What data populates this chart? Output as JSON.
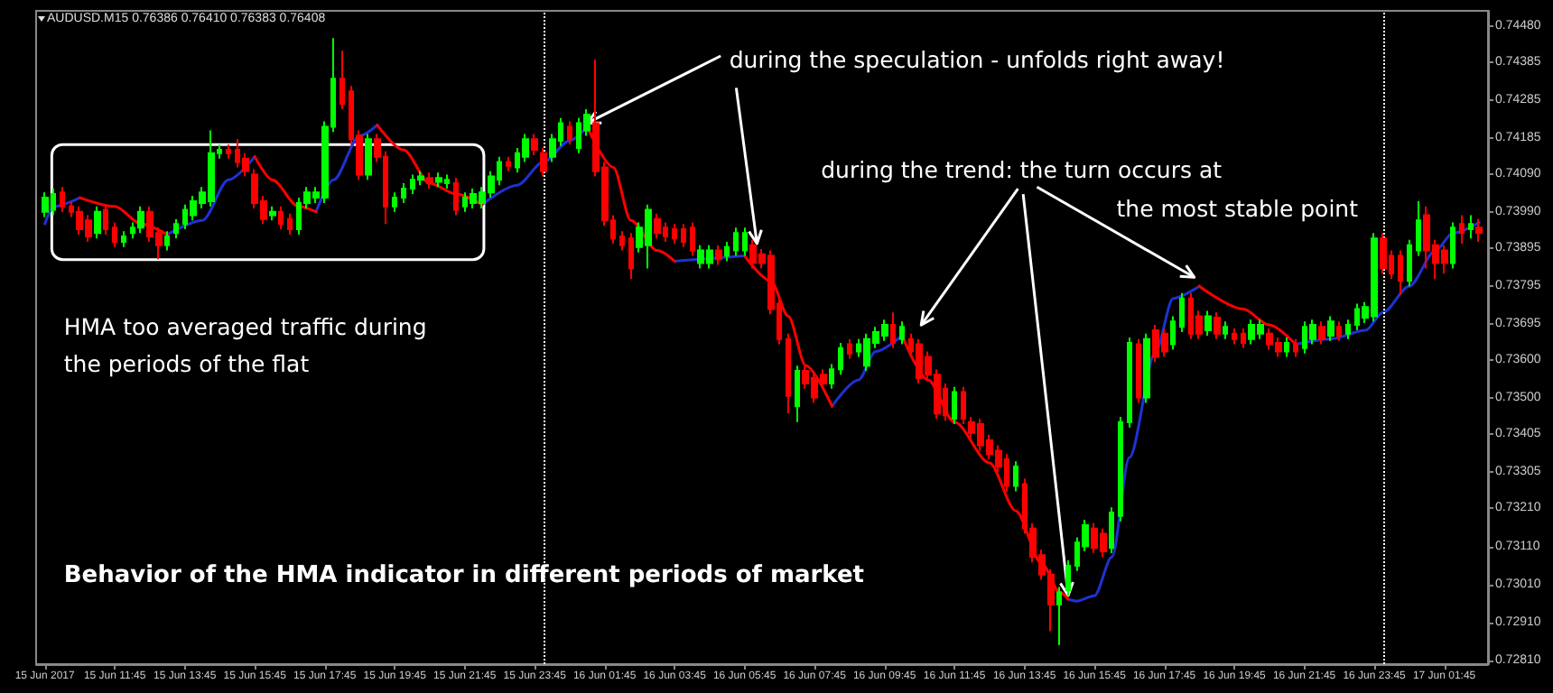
{
  "chart_data": {
    "type": "candlestick",
    "title": "AUDUSD.M15 0.76386 0.76410 0.76383 0.76408",
    "x": [
      "2017-06-15T09:45",
      "2017-06-15T10:00",
      "2017-06-15T10:15",
      "2017-06-15T10:30",
      "2017-06-15T10:45",
      "2017-06-15T11:00",
      "2017-06-15T11:15",
      "2017-06-15T11:30",
      "2017-06-15T11:45",
      "2017-06-15T12:00",
      "2017-06-15T12:15",
      "2017-06-15T12:30",
      "2017-06-15T12:45",
      "2017-06-15T13:00",
      "2017-06-15T13:15",
      "2017-06-15T13:30",
      "2017-06-15T13:45",
      "2017-06-15T14:00",
      "2017-06-15T14:15",
      "2017-06-15T14:30",
      "2017-06-15T14:45",
      "2017-06-15T15:00",
      "2017-06-15T15:15",
      "2017-06-15T15:30",
      "2017-06-15T15:45",
      "2017-06-15T16:00",
      "2017-06-15T16:15",
      "2017-06-15T16:30",
      "2017-06-15T16:45",
      "2017-06-15T17:00",
      "2017-06-15T17:15",
      "2017-06-15T17:30",
      "2017-06-15T17:45",
      "2017-06-15T18:00",
      "2017-06-15T18:15",
      "2017-06-15T18:30",
      "2017-06-15T18:45",
      "2017-06-15T19:00",
      "2017-06-15T19:15",
      "2017-06-15T19:30",
      "2017-06-15T19:45",
      "2017-06-15T20:00",
      "2017-06-15T20:15",
      "2017-06-15T20:30",
      "2017-06-15T20:45",
      "2017-06-15T21:00",
      "2017-06-15T21:15",
      "2017-06-15T21:30",
      "2017-06-15T21:45",
      "2017-06-15T22:00",
      "2017-06-15T22:15",
      "2017-06-15T22:30",
      "2017-06-15T22:45",
      "2017-06-15T23:00",
      "2017-06-15T23:15",
      "2017-06-15T23:30",
      "2017-06-15T23:45",
      "2017-06-16T00:00",
      "2017-06-16T00:15",
      "2017-06-16T00:30",
      "2017-06-16T00:45",
      "2017-06-16T01:00",
      "2017-06-16T01:15",
      "2017-06-16T01:30",
      "2017-06-16T01:45",
      "2017-06-16T02:00",
      "2017-06-16T02:15",
      "2017-06-16T02:30",
      "2017-06-16T02:45",
      "2017-06-16T03:00",
      "2017-06-16T03:15",
      "2017-06-16T03:30",
      "2017-06-16T03:45",
      "2017-06-16T04:00",
      "2017-06-16T04:15",
      "2017-06-16T04:30",
      "2017-06-16T04:45",
      "2017-06-16T05:00",
      "2017-06-16T05:15",
      "2017-06-16T05:30",
      "2017-06-16T05:45",
      "2017-06-16T06:00",
      "2017-06-16T06:15",
      "2017-06-16T06:30",
      "2017-06-16T06:45",
      "2017-06-16T07:00",
      "2017-06-16T07:15",
      "2017-06-16T07:30",
      "2017-06-16T07:45",
      "2017-06-16T08:00",
      "2017-06-16T08:15",
      "2017-06-16T08:30",
      "2017-06-16T08:45",
      "2017-06-16T09:00",
      "2017-06-16T09:15",
      "2017-06-16T09:30",
      "2017-06-16T09:45",
      "2017-06-16T10:00",
      "2017-06-16T10:15",
      "2017-06-16T10:30",
      "2017-06-16T10:45",
      "2017-06-16T11:00",
      "2017-06-16T11:15",
      "2017-06-16T11:30",
      "2017-06-16T11:45",
      "2017-06-16T12:00",
      "2017-06-16T12:15",
      "2017-06-16T12:30",
      "2017-06-16T12:45",
      "2017-06-16T13:00",
      "2017-06-16T13:15",
      "2017-06-16T13:30",
      "2017-06-16T13:45",
      "2017-06-16T14:00",
      "2017-06-16T14:15",
      "2017-06-16T14:30",
      "2017-06-16T14:45",
      "2017-06-16T15:00",
      "2017-06-16T15:15",
      "2017-06-16T15:30",
      "2017-06-16T15:45",
      "2017-06-16T16:00",
      "2017-06-16T16:15",
      "2017-06-16T16:30",
      "2017-06-16T16:45",
      "2017-06-16T17:00",
      "2017-06-16T17:15",
      "2017-06-16T17:30",
      "2017-06-16T17:45",
      "2017-06-16T18:00",
      "2017-06-16T18:15",
      "2017-06-16T18:30",
      "2017-06-16T18:45",
      "2017-06-16T19:00",
      "2017-06-16T19:15",
      "2017-06-16T19:30",
      "2017-06-16T19:45",
      "2017-06-16T20:00",
      "2017-06-16T20:15",
      "2017-06-16T20:30",
      "2017-06-16T20:45",
      "2017-06-16T21:00",
      "2017-06-16T21:15",
      "2017-06-16T21:30",
      "2017-06-16T21:45",
      "2017-06-16T22:00",
      "2017-06-16T22:15",
      "2017-06-16T22:30",
      "2017-06-16T22:45",
      "2017-06-16T23:00",
      "2017-06-16T23:15",
      "2017-06-16T23:30",
      "2017-06-16T23:45",
      "2017-06-17T00:00",
      "2017-06-17T00:15",
      "2017-06-17T00:30",
      "2017-06-17T00:45",
      "2017-06-17T01:00",
      "2017-06-17T01:15",
      "2017-06-17T01:30",
      "2017-06-17T01:45",
      "2017-06-17T02:00",
      "2017-06-17T02:15",
      "2017-06-17T02:30",
      "2017-06-17T02:45"
    ],
    "ohlc": [
      [
        0.73991,
        0.74042,
        0.73977,
        0.74028
      ],
      [
        0.73996,
        0.74052,
        0.73982,
        0.74038
      ],
      [
        0.74042,
        0.74056,
        0.73991,
        0.74005
      ],
      [
        0.74005,
        0.74019,
        0.73977,
        0.73991
      ],
      [
        0.73991,
        0.74005,
        0.73931,
        0.73945
      ],
      [
        0.73968,
        0.73982,
        0.73912,
        0.73926
      ],
      [
        0.73935,
        0.74005,
        0.73921,
        0.73991
      ],
      [
        0.73996,
        0.7401,
        0.73931,
        0.73945
      ],
      [
        0.73949,
        0.73963,
        0.73898,
        0.73912
      ],
      [
        0.73912,
        0.7394,
        0.73898,
        0.73926
      ],
      [
        0.73935,
        0.73963,
        0.73921,
        0.73949
      ],
      [
        0.73949,
        0.74005,
        0.73935,
        0.73991
      ],
      [
        0.73991,
        0.74005,
        0.73912,
        0.73926
      ],
      [
        0.73935,
        0.73949,
        0.73866,
        0.73903
      ],
      [
        0.73903,
        0.7394,
        0.73889,
        0.73926
      ],
      [
        0.73935,
        0.73972,
        0.73921,
        0.73959
      ],
      [
        0.73959,
        0.7401,
        0.73945,
        0.73996
      ],
      [
        0.73982,
        0.74033,
        0.73968,
        0.74019
      ],
      [
        0.74014,
        0.74056,
        0.74,
        0.74042
      ],
      [
        0.74019,
        0.74205,
        0.74005,
        0.74145
      ],
      [
        0.74145,
        0.74168,
        0.74131,
        0.74154
      ],
      [
        0.74154,
        0.74168,
        0.74131,
        0.74145
      ],
      [
        0.74154,
        0.74182,
        0.74108,
        0.74122
      ],
      [
        0.74131,
        0.74145,
        0.74084,
        0.74098
      ],
      [
        0.74089,
        0.74103,
        0.74,
        0.74014
      ],
      [
        0.74019,
        0.74033,
        0.73959,
        0.73972
      ],
      [
        0.73982,
        0.74005,
        0.73968,
        0.73991
      ],
      [
        0.73991,
        0.74005,
        0.73945,
        0.73959
      ],
      [
        0.73972,
        0.73986,
        0.73931,
        0.73945
      ],
      [
        0.73945,
        0.74028,
        0.73931,
        0.74014
      ],
      [
        0.74014,
        0.74056,
        0.74,
        0.74042
      ],
      [
        0.74028,
        0.74056,
        0.74014,
        0.74042
      ],
      [
        0.74028,
        0.74229,
        0.74014,
        0.74215
      ],
      [
        0.74215,
        0.74448,
        0.74201,
        0.74341
      ],
      [
        0.74341,
        0.74415,
        0.74261,
        0.74275
      ],
      [
        0.74308,
        0.74322,
        0.74168,
        0.74182
      ],
      [
        0.74191,
        0.74205,
        0.74075,
        0.74089
      ],
      [
        0.74089,
        0.74196,
        0.74075,
        0.74182
      ],
      [
        0.74182,
        0.74196,
        0.74122,
        0.74136
      ],
      [
        0.74136,
        0.7415,
        0.73959,
        0.74005
      ],
      [
        0.74005,
        0.74042,
        0.73991,
        0.74028
      ],
      [
        0.74028,
        0.74066,
        0.74014,
        0.74052
      ],
      [
        0.74052,
        0.74089,
        0.74038,
        0.74075
      ],
      [
        0.74075,
        0.74098,
        0.74061,
        0.74084
      ],
      [
        0.7408,
        0.74094,
        0.74052,
        0.74066
      ],
      [
        0.7407,
        0.74094,
        0.74056,
        0.7408
      ],
      [
        0.74066,
        0.74089,
        0.74052,
        0.74075
      ],
      [
        0.74066,
        0.7408,
        0.73982,
        0.73996
      ],
      [
        0.74005,
        0.74042,
        0.73991,
        0.74028
      ],
      [
        0.74014,
        0.74052,
        0.74,
        0.74038
      ],
      [
        0.74014,
        0.74056,
        0.74,
        0.74042
      ],
      [
        0.74042,
        0.74098,
        0.74028,
        0.74084
      ],
      [
        0.74075,
        0.74136,
        0.74061,
        0.74122
      ],
      [
        0.74122,
        0.74136,
        0.74098,
        0.74112
      ],
      [
        0.74108,
        0.74159,
        0.74094,
        0.74145
      ],
      [
        0.74136,
        0.74196,
        0.74122,
        0.74182
      ],
      [
        0.74182,
        0.74196,
        0.7414,
        0.74154
      ],
      [
        0.74145,
        0.74159,
        0.74084,
        0.74098
      ],
      [
        0.74136,
        0.74196,
        0.74122,
        0.74182
      ],
      [
        0.74178,
        0.74238,
        0.74164,
        0.74224
      ],
      [
        0.74215,
        0.74229,
        0.74168,
        0.74182
      ],
      [
        0.74159,
        0.74238,
        0.74145,
        0.74224
      ],
      [
        0.74205,
        0.74261,
        0.74191,
        0.74247
      ],
      [
        0.74224,
        0.74392,
        0.74084,
        0.74098
      ],
      [
        0.74108,
        0.74122,
        0.73954,
        0.73968
      ],
      [
        0.73968,
        0.73982,
        0.73907,
        0.73921
      ],
      [
        0.73926,
        0.7394,
        0.73889,
        0.73903
      ],
      [
        0.73921,
        0.73935,
        0.73814,
        0.73842
      ],
      [
        0.73898,
        0.73963,
        0.73884,
        0.73949
      ],
      [
        0.73903,
        0.7401,
        0.73842,
        0.73996
      ],
      [
        0.73972,
        0.73986,
        0.73921,
        0.73935
      ],
      [
        0.73949,
        0.73963,
        0.73912,
        0.73926
      ],
      [
        0.73945,
        0.73959,
        0.73907,
        0.73921
      ],
      [
        0.73945,
        0.73959,
        0.73898,
        0.73912
      ],
      [
        0.73949,
        0.73963,
        0.73875,
        0.73889
      ],
      [
        0.73856,
        0.73903,
        0.73842,
        0.73889
      ],
      [
        0.73856,
        0.73903,
        0.73842,
        0.73889
      ],
      [
        0.73889,
        0.73903,
        0.73851,
        0.73866
      ],
      [
        0.73875,
        0.73912,
        0.73861,
        0.73898
      ],
      [
        0.73889,
        0.73949,
        0.73875,
        0.73935
      ],
      [
        0.73889,
        0.73949,
        0.73875,
        0.73935
      ],
      [
        0.73903,
        0.73917,
        0.73842,
        0.73856
      ],
      [
        0.73879,
        0.73893,
        0.73842,
        0.73856
      ],
      [
        0.73875,
        0.73889,
        0.73721,
        0.73735
      ],
      [
        0.73749,
        0.73763,
        0.73642,
        0.73656
      ],
      [
        0.73656,
        0.7367,
        0.7346,
        0.73506
      ],
      [
        0.73479,
        0.73586,
        0.73437,
        0.73572
      ],
      [
        0.73572,
        0.73586,
        0.73525,
        0.73539
      ],
      [
        0.73553,
        0.73567,
        0.73488,
        0.73502
      ],
      [
        0.73562,
        0.73576,
        0.73525,
        0.73539
      ],
      [
        0.73539,
        0.7359,
        0.73525,
        0.73576
      ],
      [
        0.73576,
        0.73646,
        0.73562,
        0.73632
      ],
      [
        0.73642,
        0.73656,
        0.73604,
        0.73618
      ],
      [
        0.73623,
        0.73656,
        0.73609,
        0.73642
      ],
      [
        0.73586,
        0.7367,
        0.73572,
        0.73656
      ],
      [
        0.73646,
        0.73688,
        0.73632,
        0.73674
      ],
      [
        0.73665,
        0.73707,
        0.73651,
        0.73693
      ],
      [
        0.73693,
        0.73726,
        0.73632,
        0.73646
      ],
      [
        0.73656,
        0.73702,
        0.73642,
        0.73688
      ],
      [
        0.73656,
        0.7367,
        0.73609,
        0.73623
      ],
      [
        0.73642,
        0.73656,
        0.73539,
        0.73553
      ],
      [
        0.73609,
        0.73623,
        0.73548,
        0.73562
      ],
      [
        0.73562,
        0.73576,
        0.73446,
        0.7346
      ],
      [
        0.73525,
        0.73539,
        0.73441,
        0.73455
      ],
      [
        0.73446,
        0.7353,
        0.73432,
        0.73516
      ],
      [
        0.73516,
        0.7353,
        0.73432,
        0.73446
      ],
      [
        0.73437,
        0.73451,
        0.73395,
        0.73409
      ],
      [
        0.73432,
        0.73446,
        0.73362,
        0.73376
      ],
      [
        0.7339,
        0.73404,
        0.73339,
        0.73353
      ],
      [
        0.73362,
        0.73376,
        0.73306,
        0.7332
      ],
      [
        0.73339,
        0.73353,
        0.73255,
        0.73269
      ],
      [
        0.73269,
        0.73334,
        0.73255,
        0.7332
      ],
      [
        0.73274,
        0.73288,
        0.73143,
        0.73157
      ],
      [
        0.73157,
        0.73171,
        0.73068,
        0.73082
      ],
      [
        0.73087,
        0.73101,
        0.73022,
        0.73036
      ],
      [
        0.73036,
        0.7305,
        0.72887,
        0.72957
      ],
      [
        0.72957,
        0.73003,
        0.7285,
        0.72989
      ],
      [
        0.72994,
        0.73073,
        0.7298,
        0.73059
      ],
      [
        0.73059,
        0.73134,
        0.73045,
        0.7312
      ],
      [
        0.7311,
        0.7318,
        0.73097,
        0.73166
      ],
      [
        0.73157,
        0.73171,
        0.73092,
        0.73106
      ],
      [
        0.73143,
        0.73157,
        0.73082,
        0.73097
      ],
      [
        0.73106,
        0.73213,
        0.73092,
        0.73199
      ],
      [
        0.7319,
        0.73451,
        0.73176,
        0.73437
      ],
      [
        0.73437,
        0.7366,
        0.73423,
        0.73646
      ],
      [
        0.73642,
        0.73656,
        0.73488,
        0.73502
      ],
      [
        0.73502,
        0.7367,
        0.73488,
        0.73656
      ],
      [
        0.73679,
        0.73693,
        0.73595,
        0.73609
      ],
      [
        0.7367,
        0.73684,
        0.73609,
        0.73623
      ],
      [
        0.73642,
        0.73716,
        0.73628,
        0.73702
      ],
      [
        0.73688,
        0.73777,
        0.73674,
        0.73763
      ],
      [
        0.73763,
        0.73777,
        0.73656,
        0.7367
      ],
      [
        0.73716,
        0.7373,
        0.73656,
        0.7367
      ],
      [
        0.73679,
        0.7373,
        0.73665,
        0.73716
      ],
      [
        0.73712,
        0.73726,
        0.73656,
        0.7367
      ],
      [
        0.7367,
        0.73702,
        0.73656,
        0.73688
      ],
      [
        0.7367,
        0.73684,
        0.73642,
        0.73656
      ],
      [
        0.7367,
        0.73684,
        0.73632,
        0.73646
      ],
      [
        0.73656,
        0.73707,
        0.73642,
        0.73693
      ],
      [
        0.7367,
        0.73707,
        0.73656,
        0.73693
      ],
      [
        0.7367,
        0.73684,
        0.73628,
        0.73642
      ],
      [
        0.73646,
        0.7366,
        0.73609,
        0.73623
      ],
      [
        0.73623,
        0.7366,
        0.73609,
        0.73646
      ],
      [
        0.73642,
        0.73656,
        0.73609,
        0.73623
      ],
      [
        0.73632,
        0.73702,
        0.73618,
        0.73688
      ],
      [
        0.73656,
        0.73707,
        0.73642,
        0.73693
      ],
      [
        0.73688,
        0.73702,
        0.73642,
        0.73656
      ],
      [
        0.73665,
        0.73716,
        0.73651,
        0.73702
      ],
      [
        0.73688,
        0.73702,
        0.73651,
        0.73665
      ],
      [
        0.7367,
        0.73707,
        0.73656,
        0.73693
      ],
      [
        0.73693,
        0.73749,
        0.73679,
        0.73735
      ],
      [
        0.73712,
        0.73753,
        0.73698,
        0.7374
      ],
      [
        0.73716,
        0.73935,
        0.73702,
        0.73921
      ],
      [
        0.73921,
        0.73935,
        0.73828,
        0.73842
      ],
      [
        0.73875,
        0.73889,
        0.73814,
        0.73828
      ],
      [
        0.73875,
        0.73889,
        0.73772,
        0.73809
      ],
      [
        0.73809,
        0.73917,
        0.73795,
        0.73903
      ],
      [
        0.73889,
        0.74019,
        0.73875,
        0.73968
      ],
      [
        0.73982,
        0.74005,
        0.73842,
        0.73889
      ],
      [
        0.73903,
        0.73917,
        0.73814,
        0.73856
      ],
      [
        0.73889,
        0.73903,
        0.73828,
        0.73856
      ],
      [
        0.73856,
        0.73963,
        0.73842,
        0.73949
      ],
      [
        0.73959,
        0.73982,
        0.73907,
        0.73935
      ],
      [
        0.73945,
        0.73982,
        0.73921,
        0.73959
      ],
      [
        0.73949,
        0.73972,
        0.73912,
        0.73935
      ]
    ],
    "colors": [
      "#00ff00",
      "#00ff00",
      "#ff0000",
      "#ff0000",
      "#ff0000",
      "#ff0000",
      "#00ff00",
      "#ff0000",
      "#ff0000",
      "#00ff00",
      "#00ff00",
      "#00ff00",
      "#ff0000",
      "#ff0000",
      "#00ff00",
      "#00ff00",
      "#00ff00",
      "#00ff00",
      "#00ff00",
      "#00ff00",
      "#00ff00",
      "#ff0000",
      "#ff0000",
      "#ff0000",
      "#ff0000",
      "#ff0000",
      "#00ff00",
      "#ff0000",
      "#ff0000",
      "#00ff00",
      "#00ff00",
      "#00ff00",
      "#00ff00",
      "#00ff00",
      "#ff0000",
      "#ff0000",
      "#ff0000",
      "#00ff00",
      "#ff0000",
      "#ff0000",
      "#00ff00",
      "#00ff00",
      "#00ff00",
      "#00ff00",
      "#ff0000",
      "#00ff00",
      "#00ff00",
      "#ff0000",
      "#00ff00",
      "#00ff00",
      "#00ff00",
      "#00ff00",
      "#00ff00",
      "#ff0000",
      "#00ff00",
      "#00ff00",
      "#ff0000",
      "#ff0000",
      "#00ff00",
      "#00ff00",
      "#ff0000",
      "#00ff00",
      "#00ff00",
      "#ff0000",
      "#ff0000",
      "#ff0000",
      "#ff0000",
      "#ff0000",
      "#00ff00",
      "#00ff00",
      "#ff0000",
      "#ff0000",
      "#ff0000",
      "#ff0000",
      "#ff0000",
      "#00ff00",
      "#00ff00",
      "#ff0000",
      "#00ff00",
      "#00ff00",
      "#00ff00",
      "#ff0000",
      "#ff0000",
      "#ff0000",
      "#ff0000",
      "#ff0000",
      "#00ff00",
      "#ff0000",
      "#ff0000",
      "#ff0000",
      "#00ff00",
      "#00ff00",
      "#ff0000",
      "#00ff00",
      "#00ff00",
      "#00ff00",
      "#00ff00",
      "#ff0000",
      "#00ff00",
      "#ff0000",
      "#ff0000",
      "#ff0000",
      "#ff0000",
      "#ff0000",
      "#00ff00",
      "#ff0000",
      "#ff0000",
      "#ff0000",
      "#ff0000",
      "#ff0000",
      "#ff0000",
      "#00ff00",
      "#ff0000",
      "#ff0000",
      "#ff0000",
      "#ff0000",
      "#00ff00",
      "#00ff00",
      "#00ff00",
      "#00ff00",
      "#ff0000",
      "#ff0000",
      "#00ff00",
      "#00ff00",
      "#00ff00",
      "#ff0000",
      "#00ff00",
      "#ff0000",
      "#ff0000",
      "#00ff00",
      "#00ff00",
      "#ff0000",
      "#ff0000",
      "#00ff00",
      "#ff0000",
      "#00ff00",
      "#ff0000",
      "#ff0000",
      "#00ff00",
      "#00ff00",
      "#ff0000",
      "#ff0000",
      "#00ff00",
      "#ff0000",
      "#00ff00",
      "#00ff00",
      "#ff0000",
      "#00ff00",
      "#ff0000",
      "#00ff00",
      "#00ff00",
      "#00ff00",
      "#00ff00",
      "#ff0000",
      "#ff0000",
      "#ff0000",
      "#00ff00",
      "#00ff00",
      "#ff0000",
      "#ff0000",
      "#ff0000",
      "#00ff00",
      "#ff0000",
      "#00ff00",
      "#ff0000"
    ],
    "series": [
      {
        "type": "line",
        "color": "#1e32d2",
        "x": [
          "2017-06-15T09:45",
          "2017-06-15T10:00",
          "2017-06-15T10:45",
          "2017-06-15T12:00",
          "2017-06-15T13:15",
          "2017-06-15T14:15",
          "2017-06-15T15:00",
          "2017-06-15T15:45",
          "2017-06-15T16:45",
          "2017-06-15T17:30",
          "2017-06-15T18:00",
          "2017-06-15T18:45",
          "2017-06-15T19:15",
          "2017-06-15T20:30",
          "2017-06-15T22:15",
          "2017-06-15T23:15",
          "2017-06-16T00:00",
          "2017-06-16T00:45",
          "2017-06-16T01:15",
          "2017-06-16T02:15",
          "2017-06-16T03:45",
          "2017-06-16T05:45",
          "2017-06-16T07:00",
          "2017-06-16T08:15",
          "2017-06-16T09:00",
          "2017-06-16T09:30",
          "2017-06-16T10:15",
          "2017-06-16T12:00",
          "2017-06-16T15:00",
          "2017-06-16T15:15",
          "2017-06-16T15:45",
          "2017-06-16T16:15",
          "2017-06-16T16:45",
          "2017-06-16T17:30",
          "2017-06-16T18:00",
          "2017-06-16T18:45",
          "2017-06-16T20:00",
          "2017-06-16T21:30",
          "2017-06-16T22:30",
          "2017-06-16T23:30",
          "2017-06-17T00:00",
          "2017-06-17T00:45",
          "2017-06-17T01:30",
          "2017-06-17T02:00",
          "2017-06-17T02:45"
        ],
        "values": [
          0.73959,
          0.74005,
          0.74028,
          null,
          0.73931,
          0.73968,
          0.74075,
          0.74136,
          null,
          0.73991,
          0.74075,
          0.74191,
          0.74219,
          null,
          0.7401,
          0.74061,
          0.74122,
          0.74178,
          0.74215,
          null,
          0.73861,
          0.73875,
          null,
          0.73479,
          0.73548,
          0.73623,
          0.73665,
          null,
          0.72971,
          0.72966,
          0.7298,
          0.73082,
          0.73344,
          0.73623,
          0.73763,
          0.73795,
          null,
          0.73642,
          0.73656,
          0.73679,
          0.73726,
          0.73795,
          0.73889,
          0.73935,
          0.73963
        ]
      },
      {
        "type": "line",
        "color": "#ff0000",
        "x": [
          "2017-06-15T10:45",
          "2017-06-15T11:45",
          "2017-06-15T12:30",
          "2017-06-15T13:15",
          "2017-06-15T14:30",
          "2017-06-15T15:45",
          "2017-06-15T16:15",
          "2017-06-15T17:00",
          "2017-06-15T17:30",
          "2017-06-15T18:15",
          "2017-06-15T19:15",
          "2017-06-15T20:00",
          "2017-06-15T20:45",
          "2017-06-15T21:30",
          "2017-06-15T22:15",
          "2017-06-15T23:00",
          "2017-06-16T01:15",
          "2017-06-16T02:00",
          "2017-06-16T02:30",
          "2017-06-16T03:15",
          "2017-06-16T03:45",
          "2017-06-16T04:45",
          "2017-06-16T05:45",
          "2017-06-16T06:30",
          "2017-06-16T07:00",
          "2017-06-16T07:30",
          "2017-06-16T08:15",
          "2017-06-16T09:15",
          "2017-06-16T10:15",
          "2017-06-16T11:00",
          "2017-06-16T11:45",
          "2017-06-16T12:45",
          "2017-06-16T13:30",
          "2017-06-16T14:15",
          "2017-06-16T14:45",
          "2017-06-16T15:00",
          "2017-06-16T16:45",
          "2017-06-16T18:45",
          "2017-06-16T20:00",
          "2017-06-16T20:45",
          "2017-06-16T21:30"
        ],
        "values": [
          0.74028,
          0.74005,
          0.73959,
          0.73931,
          null,
          0.74136,
          0.74075,
          0.74005,
          0.73991,
          null,
          0.74219,
          0.74154,
          0.74066,
          0.74038,
          0.7401,
          null,
          0.74215,
          0.74108,
          0.73968,
          0.73889,
          0.73861,
          null,
          0.73875,
          0.73809,
          0.73716,
          0.73586,
          0.73479,
          null,
          0.73665,
          0.73548,
          0.73437,
          0.7333,
          0.73204,
          0.73064,
          0.7299,
          0.72971,
          null,
          0.73795,
          0.73735,
          0.73693,
          0.73642
        ]
      }
    ],
    "xlim": [
      "2017-06-15T09:30",
      "2017-06-17T03:00"
    ],
    "xticks": [
      {
        "value": "2017-06-15T09:45",
        "label": "15 Jun 2017"
      },
      {
        "value": "2017-06-15T11:45",
        "label": "15 Jun 11:45"
      },
      {
        "value": "2017-06-15T13:45",
        "label": "15 Jun 13:45"
      },
      {
        "value": "2017-06-15T15:45",
        "label": "15 Jun 15:45"
      },
      {
        "value": "2017-06-15T17:45",
        "label": "15 Jun 17:45"
      },
      {
        "value": "2017-06-15T19:45",
        "label": "15 Jun 19:45"
      },
      {
        "value": "2017-06-15T21:45",
        "label": "15 Jun 21:45"
      },
      {
        "value": "2017-06-15T23:45",
        "label": "15 Jun 23:45"
      },
      {
        "value": "2017-06-16T01:45",
        "label": "16 Jun 01:45"
      },
      {
        "value": "2017-06-16T03:45",
        "label": "16 Jun 03:45"
      },
      {
        "value": "2017-06-16T05:45",
        "label": "16 Jun 05:45"
      },
      {
        "value": "2017-06-16T07:45",
        "label": "16 Jun 07:45"
      },
      {
        "value": "2017-06-16T09:45",
        "label": "16 Jun 09:45"
      },
      {
        "value": "2017-06-16T11:45",
        "label": "16 Jun 11:45"
      },
      {
        "value": "2017-06-16T13:45",
        "label": "16 Jun 13:45"
      },
      {
        "value": "2017-06-16T15:45",
        "label": "16 Jun 15:45"
      },
      {
        "value": "2017-06-16T17:45",
        "label": "16 Jun 17:45"
      },
      {
        "value": "2017-06-16T19:45",
        "label": "16 Jun 19:45"
      },
      {
        "value": "2017-06-16T21:45",
        "label": "16 Jun 21:45"
      },
      {
        "value": "2017-06-16T23:45",
        "label": "16 Jun 23:45"
      },
      {
        "value": "2017-06-17T01:45",
        "label": "17 Jun 01:45"
      }
    ],
    "ylim": [
      0.728,
      0.7452
    ],
    "yticks": [
      {
        "value": 0.7448,
        "label": "0.74480"
      },
      {
        "value": 0.74385,
        "label": "0.74385"
      },
      {
        "value": 0.74285,
        "label": "0.74285"
      },
      {
        "value": 0.74185,
        "label": "0.74185"
      },
      {
        "value": 0.7409,
        "label": "0.74090"
      },
      {
        "value": 0.7399,
        "label": "0.73990"
      },
      {
        "value": 0.73895,
        "label": "0.73895"
      },
      {
        "value": 0.73795,
        "label": "0.73795"
      },
      {
        "value": 0.73695,
        "label": "0.73695"
      },
      {
        "value": 0.736,
        "label": "0.73600"
      },
      {
        "value": 0.735,
        "label": "0.73500"
      },
      {
        "value": 0.73405,
        "label": "0.73405"
      },
      {
        "value": 0.73305,
        "label": "0.73305"
      },
      {
        "value": 0.7321,
        "label": "0.73210"
      },
      {
        "value": 0.7311,
        "label": "0.73110"
      },
      {
        "value": 0.7301,
        "label": "0.73010"
      },
      {
        "value": 0.7291,
        "label": "0.72910"
      },
      {
        "value": 0.7281,
        "label": "0.72810"
      }
    ],
    "ref_lines": [
      {
        "axis": "x",
        "value": "2017-06-16T00:00",
        "color": "#ffffff",
        "line_style": "dotted"
      },
      {
        "axis": "x",
        "value": "2017-06-17T00:00",
        "color": "#ffffff",
        "line_style": "dotted"
      }
    ],
    "annotations": [
      {
        "text": "during the speculation - unfolds right away!",
        "x": "2017-06-16T01:15",
        "y": 0.74215
      },
      {
        "text": "during the trend: the turn occurs at",
        "x": "2017-06-16T15:00",
        "y": 0.72971
      },
      "the most stable point",
      "HMA too averaged traffic during",
      "the periods of the flat",
      "Behavior of the HMA indicator in different periods of market"
    ],
    "grid": false,
    "marker": "none"
  }
}
